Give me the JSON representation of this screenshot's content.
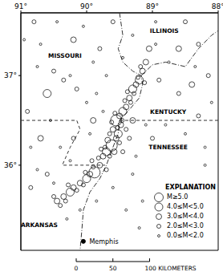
{
  "chart_data": {
    "type": "scatter",
    "xlim": [
      91,
      88
    ],
    "ylim": [
      35.05,
      37.7
    ],
    "xticks": [
      {
        "value": 91,
        "label": "91°"
      },
      {
        "value": 90,
        "label": "90°"
      },
      {
        "value": 89,
        "label": "89°"
      },
      {
        "value": 88,
        "label": "88°"
      }
    ],
    "yticks": [
      {
        "value": 37,
        "label": "37°"
      },
      {
        "value": 36,
        "label": "36°"
      }
    ],
    "legend": "lower right",
    "legend_title": "EXPLANATION",
    "series": [
      {
        "name": "M≥5.0",
        "color": "#000000",
        "marker": "circle",
        "values": [
          [
            89.55,
            36.5
          ],
          [
            89.62,
            36.22
          ],
          [
            89.88,
            35.92
          ]
        ]
      },
      {
        "name": "4.0≤M<5.0",
        "color": "#000000",
        "marker": "circle",
        "values": [
          [
            89.45,
            36.6
          ],
          [
            89.3,
            36.85
          ],
          [
            89.7,
            36.15
          ],
          [
            90.0,
            35.85
          ],
          [
            90.25,
            35.7
          ],
          [
            89.52,
            36.35
          ],
          [
            89.2,
            36.95
          ],
          [
            90.6,
            36.8
          ]
        ]
      },
      {
        "name": "3.0≤M<4.0",
        "color": "#000000",
        "marker": "circle",
        "values": [
          [
            89.35,
            36.75
          ],
          [
            89.25,
            36.9
          ],
          [
            89.15,
            37.05
          ],
          [
            89.4,
            36.65
          ],
          [
            89.5,
            36.55
          ],
          [
            89.6,
            36.4
          ],
          [
            89.55,
            36.3
          ],
          [
            89.68,
            36.28
          ],
          [
            89.75,
            36.1
          ],
          [
            89.8,
            36.0
          ],
          [
            89.95,
            35.9
          ],
          [
            90.1,
            35.8
          ],
          [
            90.2,
            35.75
          ],
          [
            90.35,
            35.65
          ],
          [
            90.45,
            35.6
          ],
          [
            89.48,
            36.45
          ],
          [
            89.58,
            36.15
          ],
          [
            89.1,
            37.15
          ],
          [
            89.05,
            37.3
          ],
          [
            89.9,
            36.5
          ],
          [
            90.2,
            37.4
          ],
          [
            88.6,
            37.3
          ],
          [
            90.7,
            36.3
          ],
          [
            89.3,
            36.5
          ],
          [
            88.4,
            36.9
          ]
        ]
      },
      {
        "name": "2.0≤M<3.0",
        "color": "#000000",
        "marker": "circle",
        "values": [
          [
            89.28,
            36.8
          ],
          [
            89.33,
            36.7
          ],
          [
            89.38,
            36.82
          ],
          [
            89.22,
            36.98
          ],
          [
            89.18,
            37.1
          ],
          [
            89.12,
            36.92
          ],
          [
            89.42,
            36.72
          ],
          [
            89.46,
            36.5
          ],
          [
            89.53,
            36.42
          ],
          [
            89.57,
            36.58
          ],
          [
            89.62,
            36.48
          ],
          [
            89.65,
            36.35
          ],
          [
            89.5,
            36.25
          ],
          [
            89.72,
            36.2
          ],
          [
            89.78,
            36.18
          ],
          [
            89.82,
            36.08
          ],
          [
            89.9,
            35.98
          ],
          [
            89.92,
            36.05
          ],
          [
            90.02,
            35.92
          ],
          [
            90.05,
            35.78
          ],
          [
            90.15,
            35.72
          ],
          [
            90.28,
            35.78
          ],
          [
            90.32,
            35.6
          ],
          [
            90.4,
            35.55
          ],
          [
            90.5,
            35.65
          ],
          [
            89.65,
            36.1
          ],
          [
            89.7,
            35.95
          ],
          [
            89.4,
            36.4
          ],
          [
            89.35,
            36.3
          ],
          [
            89.45,
            36.15
          ],
          [
            90.8,
            37.6
          ],
          [
            90.5,
            37.05
          ],
          [
            90.15,
            36.85
          ],
          [
            90.9,
            36.6
          ],
          [
            90.35,
            36.95
          ],
          [
            89.8,
            37.3
          ],
          [
            89.6,
            37.6
          ],
          [
            88.3,
            37.35
          ],
          [
            88.5,
            37.6
          ],
          [
            88.15,
            37.0
          ],
          [
            88.9,
            36.95
          ],
          [
            88.6,
            36.8
          ],
          [
            89.0,
            36.3
          ],
          [
            90.6,
            35.9
          ],
          [
            90.85,
            35.75
          ],
          [
            90.2,
            36.3
          ],
          [
            88.3,
            36.55
          ]
        ]
      },
      {
        "name": "0.0≤M<2.0",
        "color": "#000000",
        "marker": "circle",
        "values": [
          [
            90.95,
            37.4
          ],
          [
            90.7,
            37.35
          ],
          [
            90.45,
            37.6
          ],
          [
            90.05,
            37.55
          ],
          [
            89.9,
            37.15
          ],
          [
            90.75,
            37.1
          ],
          [
            90.25,
            37.0
          ],
          [
            90.0,
            36.7
          ],
          [
            90.55,
            36.5
          ],
          [
            90.85,
            36.2
          ],
          [
            90.4,
            36.2
          ],
          [
            90.75,
            35.95
          ],
          [
            90.3,
            35.4
          ],
          [
            90.1,
            35.5
          ],
          [
            89.85,
            35.6
          ],
          [
            89.6,
            35.75
          ],
          [
            89.3,
            35.9
          ],
          [
            89.25,
            36.1
          ],
          [
            89.1,
            36.45
          ],
          [
            88.8,
            36.45
          ],
          [
            88.5,
            36.35
          ],
          [
            88.2,
            36.2
          ],
          [
            88.1,
            36.7
          ],
          [
            88.35,
            37.1
          ],
          [
            88.75,
            37.15
          ],
          [
            88.95,
            37.6
          ],
          [
            89.3,
            37.45
          ],
          [
            89.45,
            37.2
          ],
          [
            89.7,
            37.0
          ],
          [
            89.85,
            36.8
          ],
          [
            89.75,
            36.6
          ],
          [
            89.95,
            36.35
          ],
          [
            90.25,
            36.05
          ],
          [
            90.5,
            35.8
          ],
          [
            89.15,
            35.6
          ],
          [
            89.4,
            35.5
          ],
          [
            88.2,
            36.0
          ],
          [
            89.2,
            35.3
          ],
          [
            88.95,
            37.35
          ]
        ]
      }
    ],
    "boundaries": [
      {
        "line_style": "dashed",
        "values": [
          [
            91,
            36.5
          ],
          [
            90.15,
            36.5
          ],
          [
            90.1,
            36.4
          ],
          [
            90.25,
            36.2
          ],
          [
            90.37,
            36.0
          ],
          [
            89.72,
            36.0
          ]
        ]
      },
      {
        "line_style": "dashed",
        "values": [
          [
            89.5,
            36.5
          ],
          [
            88.0,
            36.5
          ]
        ]
      },
      {
        "line_style": "dashdot",
        "values": [
          [
            89.5,
            37.7
          ],
          [
            89.45,
            37.45
          ],
          [
            89.52,
            37.3
          ],
          [
            89.45,
            37.15
          ],
          [
            89.3,
            37.05
          ],
          [
            89.17,
            37.0
          ],
          [
            89.15,
            36.9
          ],
          [
            89.2,
            36.75
          ],
          [
            89.35,
            36.62
          ],
          [
            89.5,
            36.5
          ],
          [
            89.52,
            36.35
          ],
          [
            89.6,
            36.2
          ],
          [
            89.7,
            36.0
          ],
          [
            89.8,
            35.85
          ],
          [
            89.95,
            35.7
          ],
          [
            90.05,
            35.5
          ],
          [
            90.07,
            35.3
          ],
          [
            90.1,
            35.05
          ]
        ]
      },
      {
        "line_style": "dashdot",
        "values": [
          [
            89.17,
            37.0
          ],
          [
            89.0,
            37.12
          ],
          [
            88.8,
            37.15
          ],
          [
            88.5,
            37.1
          ],
          [
            88.3,
            37.3
          ],
          [
            88.1,
            37.45
          ],
          [
            88.0,
            37.5
          ]
        ]
      }
    ],
    "annotations": [
      {
        "text": "MISSOURI",
        "x": 90.33,
        "y": 37.22
      },
      {
        "text": "ILLINOIS",
        "x": 88.82,
        "y": 37.5
      },
      {
        "text": "KENTUCKY",
        "x": 88.76,
        "y": 36.6
      },
      {
        "text": "TENNESSEE",
        "x": 88.76,
        "y": 36.2
      },
      {
        "text": "ARKANSAS",
        "x": 90.72,
        "y": 35.33
      },
      {
        "text": "Memphis",
        "x": 90.05,
        "y": 35.15,
        "marker": "circle"
      }
    ],
    "scale_bar": {
      "ticks": [
        {
          "value": 0,
          "label": "0"
        },
        {
          "value": 50,
          "label": "50"
        },
        {
          "value": 100,
          "label": "100 KILOMETERS"
        }
      ]
    }
  }
}
